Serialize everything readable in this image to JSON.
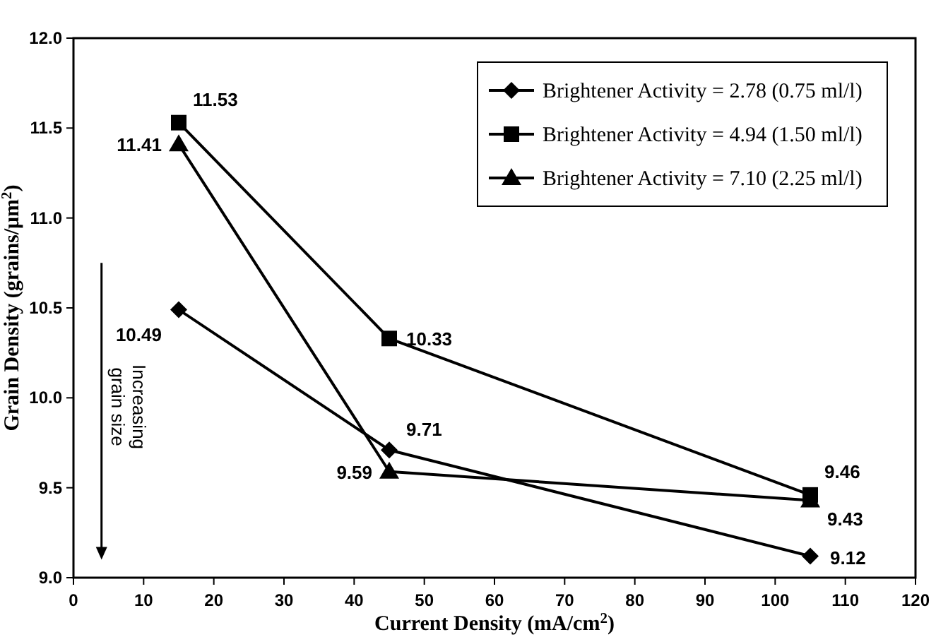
{
  "chart_data": {
    "type": "line",
    "xlabel": "Current Density (mA/cm$^{2}$)",
    "ylabel": "Grain Density (grains/μm$^{2}$)",
    "x": [
      15,
      45,
      105
    ],
    "series": [
      {
        "name": "Brightener Activity = 2.78 (0.75 ml/l)",
        "color": "#000000",
        "marker": "diamond",
        "values": [
          10.49,
          9.71,
          9.12
        ]
      },
      {
        "name": "Brightener Activity = 4.94 (1.50 ml/l)",
        "color": "#000000",
        "marker": "square",
        "values": [
          11.53,
          10.33,
          9.46
        ]
      },
      {
        "name": "Brightener Activity = 7.10 (2.25 ml/l)",
        "color": "#000000",
        "marker": "triangle",
        "values": [
          11.41,
          9.59,
          9.43
        ]
      }
    ],
    "xlim": [
      0,
      120
    ],
    "xticks": [
      0,
      10,
      20,
      30,
      40,
      50,
      60,
      70,
      80,
      90,
      100,
      110,
      120
    ],
    "ylim": [
      9,
      12
    ],
    "yticks": [
      {
        "value": 9,
        "label": "9.0"
      },
      {
        "value": 9.5,
        "label": "9.5"
      },
      {
        "value": 10,
        "label": "10.0"
      },
      {
        "value": 10.5,
        "label": "10.5"
      },
      {
        "value": 11,
        "label": "11.0"
      },
      {
        "value": 11.5,
        "label": "11.5"
      },
      {
        "value": 12,
        "label": "12.0"
      }
    ],
    "data_labels": true,
    "legend": "top right",
    "line_style": "solid",
    "annotations": [
      "Increasing grain size"
    ]
  }
}
